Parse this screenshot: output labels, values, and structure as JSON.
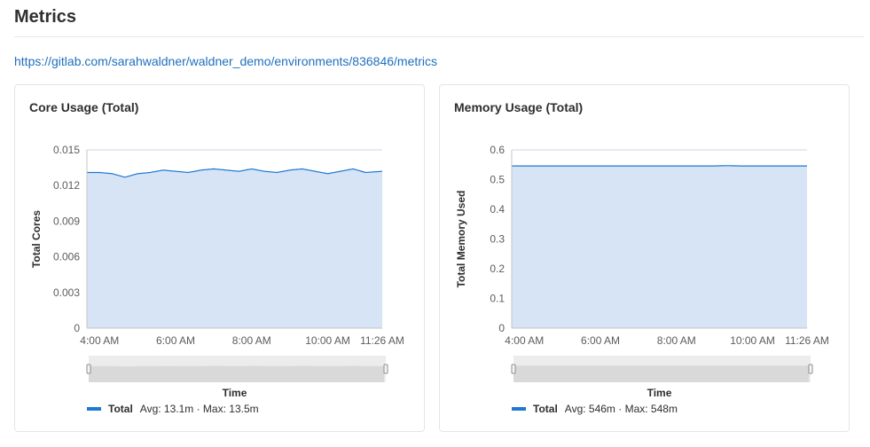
{
  "page": {
    "title": "Metrics",
    "url": "https://gitlab.com/sarahwaldner/waldner_demo/environments/836846/metrics"
  },
  "colors": {
    "line": "#1f78d1",
    "area": "#d6e4f5",
    "grid": "#cfd6e0",
    "link": "#1f6fbf"
  },
  "panels": [
    {
      "title": "Core Usage (Total)",
      "legend": {
        "name": "Total",
        "stats": "Avg: 13.1m · Max: 13.5m"
      }
    },
    {
      "title": "Memory Usage (Total)",
      "legend": {
        "name": "Total",
        "stats": "Avg: 546m · Max: 548m"
      }
    }
  ],
  "chart_data": [
    {
      "type": "area",
      "title": "Core Usage (Total)",
      "xlabel": "Time",
      "ylabel": "Total Cores",
      "x_ticks": [
        "4:00 AM",
        "6:00 AM",
        "8:00 AM",
        "10:00 AM",
        "11:26 AM"
      ],
      "y_ticks": [
        "0",
        "0.003",
        "0.006",
        "0.009",
        "0.012",
        "0.015"
      ],
      "ylim": [
        0,
        0.015
      ],
      "grid": true,
      "series": [
        {
          "name": "Total",
          "x": [
            "3:40 AM",
            "4:00 AM",
            "4:20 AM",
            "4:40 AM",
            "5:00 AM",
            "5:20 AM",
            "5:40 AM",
            "6:00 AM",
            "6:20 AM",
            "6:40 AM",
            "7:00 AM",
            "7:20 AM",
            "7:40 AM",
            "8:00 AM",
            "8:20 AM",
            "8:40 AM",
            "9:00 AM",
            "9:20 AM",
            "9:40 AM",
            "10:00 AM",
            "10:20 AM",
            "10:40 AM",
            "11:00 AM",
            "11:26 AM"
          ],
          "values": [
            0.0131,
            0.0131,
            0.013,
            0.0127,
            0.013,
            0.0131,
            0.0133,
            0.0132,
            0.0131,
            0.0133,
            0.0134,
            0.0133,
            0.0132,
            0.0134,
            0.0132,
            0.0131,
            0.0133,
            0.0134,
            0.0132,
            0.013,
            0.0132,
            0.0134,
            0.0131,
            0.0132
          ]
        }
      ]
    },
    {
      "type": "area",
      "title": "Memory Usage (Total)",
      "xlabel": "Time",
      "ylabel": "Total Memory Used",
      "x_ticks": [
        "4:00 AM",
        "6:00 AM",
        "8:00 AM",
        "10:00 AM",
        "11:26 AM"
      ],
      "y_ticks": [
        "0",
        "0.1",
        "0.2",
        "0.3",
        "0.4",
        "0.5",
        "0.6"
      ],
      "ylim": [
        0,
        0.6
      ],
      "grid": true,
      "series": [
        {
          "name": "Total",
          "x": [
            "3:40 AM",
            "4:00 AM",
            "4:20 AM",
            "4:40 AM",
            "5:00 AM",
            "5:20 AM",
            "5:40 AM",
            "6:00 AM",
            "6:20 AM",
            "6:40 AM",
            "7:00 AM",
            "7:20 AM",
            "7:40 AM",
            "8:00 AM",
            "8:20 AM",
            "8:40 AM",
            "9:00 AM",
            "9:20 AM",
            "9:40 AM",
            "10:00 AM",
            "10:20 AM",
            "10:40 AM",
            "11:00 AM",
            "11:26 AM"
          ],
          "values": [
            0.546,
            0.546,
            0.546,
            0.546,
            0.546,
            0.546,
            0.546,
            0.546,
            0.546,
            0.546,
            0.546,
            0.546,
            0.546,
            0.546,
            0.546,
            0.546,
            0.546,
            0.547,
            0.546,
            0.546,
            0.546,
            0.546,
            0.546,
            0.546
          ]
        }
      ]
    }
  ]
}
